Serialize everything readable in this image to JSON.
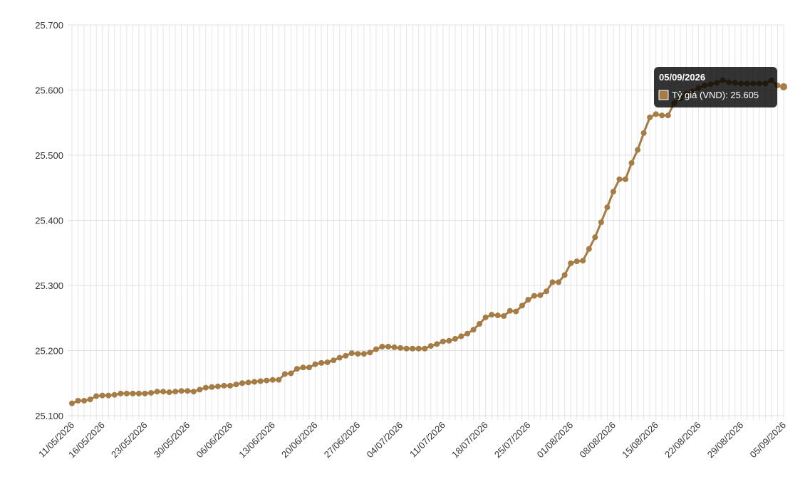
{
  "chart_data": {
    "type": "line",
    "categories": [
      "11/05/2026",
      null,
      null,
      null,
      null,
      "16/05/2026",
      null,
      null,
      null,
      null,
      null,
      null,
      "23/05/2026",
      null,
      null,
      null,
      null,
      null,
      null,
      "30/05/2026",
      null,
      null,
      null,
      null,
      null,
      null,
      "06/06/2026",
      null,
      null,
      null,
      null,
      null,
      null,
      "13/06/2026",
      null,
      null,
      null,
      null,
      null,
      null,
      "20/06/2026",
      null,
      null,
      null,
      null,
      null,
      null,
      "27/06/2026",
      null,
      null,
      null,
      null,
      null,
      null,
      "04/07/2026",
      null,
      null,
      null,
      null,
      null,
      null,
      "11/07/2026",
      null,
      null,
      null,
      null,
      null,
      null,
      "18/07/2026",
      null,
      null,
      null,
      null,
      null,
      null,
      "25/07/2026",
      null,
      null,
      null,
      null,
      null,
      null,
      "01/08/2026",
      null,
      null,
      null,
      null,
      null,
      null,
      "08/08/2026",
      null,
      null,
      null,
      null,
      null,
      null,
      "15/08/2026",
      null,
      null,
      null,
      null,
      null,
      null,
      "22/08/2026",
      null,
      null,
      null,
      null,
      null,
      null,
      "29/08/2026",
      null,
      null,
      null,
      null,
      null,
      null,
      "05/09/2026"
    ],
    "series": [
      {
        "color": "#a57c45",
        "values": [
          25119,
          25123,
          25123,
          25125,
          25130,
          25131,
          25131,
          25132,
          25134,
          25134,
          25134,
          25134,
          25134,
          25135,
          25137,
          25137,
          25136,
          25137,
          25138,
          25138,
          25137,
          25140,
          25143,
          25144,
          25145,
          25146,
          25146,
          25148,
          25150,
          25151,
          25152,
          25153,
          25154,
          25155,
          25155,
          25164,
          25165,
          25172,
          25174,
          25174,
          25179,
          25181,
          25182,
          25185,
          25189,
          25192,
          25196,
          25195,
          25195,
          25197,
          25202,
          25206,
          25206,
          25205,
          25204,
          25203,
          25203,
          25203,
          25203,
          25207,
          25210,
          25214,
          25215,
          25218,
          25222,
          25226,
          25232,
          25241,
          25251,
          25255,
          25254,
          25253,
          25261,
          25260,
          25269,
          25278,
          25284,
          25285,
          25291,
          25305,
          25305,
          25316,
          25334,
          25337,
          25338,
          25356,
          25374,
          25397,
          25420,
          25444,
          25463,
          25463,
          25488,
          25508,
          25534,
          25558,
          25563,
          25561,
          25561,
          25580,
          25587,
          25594,
          25598,
          25603,
          25607,
          25609,
          25611,
          25615,
          25612,
          25611,
          25610,
          25610,
          25610,
          25610,
          25610,
          25615,
          25607,
          25605
        ]
      }
    ],
    "ylim": [
      25100,
      25700
    ],
    "yticks": [
      {
        "value": 25100,
        "label": "25.100"
      },
      {
        "value": 25200,
        "label": "25.200"
      },
      {
        "value": 25300,
        "label": "25.300"
      },
      {
        "value": 25400,
        "label": "25.400"
      },
      {
        "value": 25500,
        "label": "25.500"
      },
      {
        "value": 25600,
        "label": "25.600"
      },
      {
        "value": 25700,
        "label": "25.700"
      }
    ],
    "grid": true,
    "tooltip": {
      "title": "05/09/2026",
      "label": "Tỷ giá (VND): 25.605"
    }
  }
}
